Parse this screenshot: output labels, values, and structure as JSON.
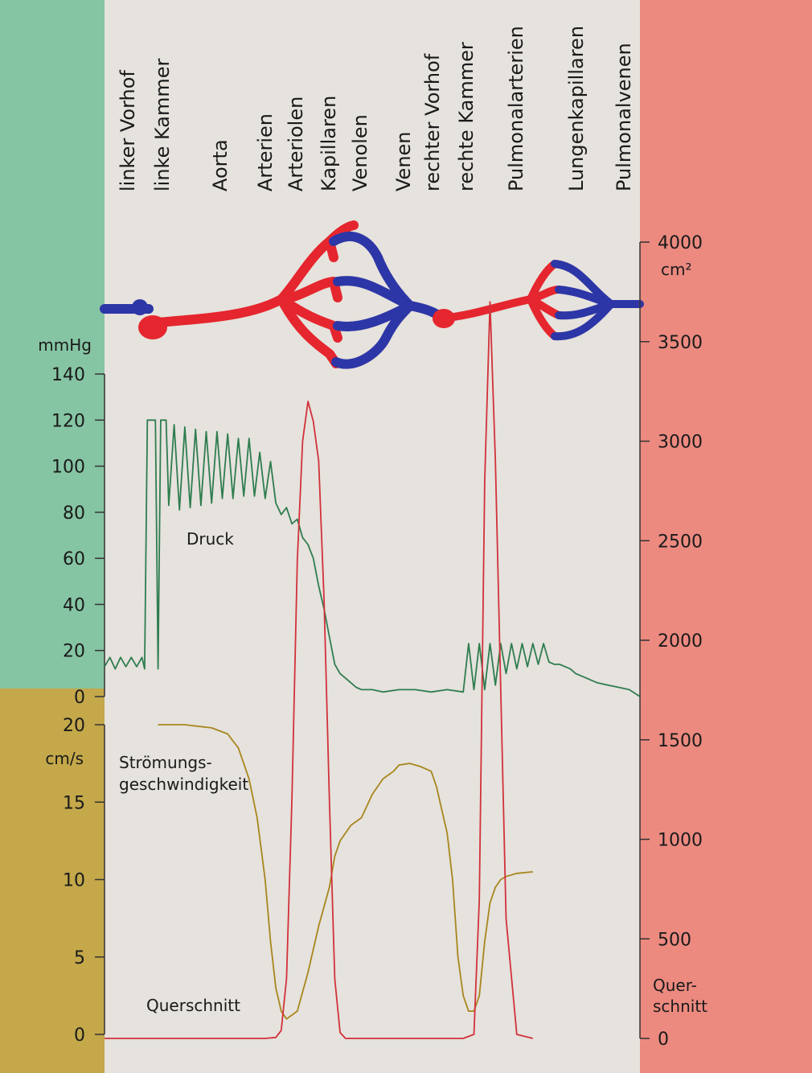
{
  "chart_data": {
    "type": "line",
    "vessel_labels": [
      "linker Vorhof",
      "linke Kammer",
      "Aorta",
      "Arterien",
      "Arteriolen",
      "Kapillaren",
      "Venolen",
      "Venen",
      "rechter Vorhof",
      "rechte Kammer",
      "Pulmonalarterien",
      "Lungenkapillaren",
      "Pulmonalvenen"
    ],
    "pressure_axis": {
      "unit": "mmHg",
      "ticks": [
        0,
        20,
        40,
        60,
        80,
        100,
        120,
        140
      ],
      "range": [
        0,
        140
      ]
    },
    "velocity_axis": {
      "unit": "cm/s",
      "ticks": [
        0,
        5,
        10,
        15,
        20
      ],
      "range": [
        0,
        20
      ]
    },
    "cross_section_axis": {
      "unit": "cm²",
      "label": "Quer-\nschnitt",
      "ticks": [
        0,
        500,
        1000,
        1500,
        2000,
        2500,
        3000,
        3500,
        4000
      ],
      "range": [
        0,
        4000
      ]
    },
    "x_range": [
      0,
      100
    ],
    "series": [
      {
        "name": "Druck",
        "axis": "pressure",
        "color": "#2e7d4f",
        "x": [
          0,
          1,
          2,
          3,
          4,
          5,
          6,
          7,
          7.5,
          8,
          9.5,
          10,
          10.5,
          11,
          11.5,
          12,
          13,
          14,
          15,
          16,
          17,
          18,
          19,
          20,
          21,
          22,
          23,
          24,
          25,
          26,
          27,
          28,
          29,
          30,
          31,
          32,
          33,
          34,
          35,
          36,
          37,
          38,
          39,
          40,
          41,
          42,
          43,
          44,
          45,
          46,
          47,
          48,
          50,
          52,
          55,
          58,
          61,
          64,
          67,
          68,
          69,
          70,
          71,
          72,
          73,
          74,
          75,
          76,
          77,
          78,
          79,
          80,
          81,
          82,
          83,
          84,
          85,
          86,
          87,
          88,
          90,
          92,
          94,
          96,
          98,
          100
        ],
        "y": [
          13,
          17,
          12,
          17,
          13,
          17,
          13,
          17,
          12,
          120,
          120,
          12,
          120,
          120,
          120,
          83,
          118,
          81,
          117,
          82,
          116,
          83,
          115,
          84,
          115,
          86,
          114,
          86,
          112,
          87,
          112,
          87,
          106,
          86,
          102,
          84,
          79,
          82,
          75,
          77,
          69,
          66,
          60,
          48,
          38,
          26,
          14,
          10,
          8,
          6,
          4,
          3,
          3,
          2,
          3,
          3,
          2,
          3,
          2,
          23,
          3,
          23,
          3,
          23,
          5,
          23,
          10,
          23,
          12,
          23,
          13,
          23,
          14,
          23,
          15,
          14,
          14,
          13,
          12,
          10,
          8,
          6,
          5,
          4,
          3,
          0
        ]
      },
      {
        "name": "Strömungsgeschwindigkeit",
        "axis": "velocity",
        "color": "#a8861e",
        "x": [
          10,
          15,
          20,
          23,
          25,
          27,
          28.5,
          30,
          31,
          32,
          33,
          34,
          36,
          38,
          40,
          42,
          43,
          44,
          46,
          48,
          50,
          52,
          54,
          55,
          57,
          59,
          61,
          62,
          64,
          65,
          66,
          67,
          68,
          69,
          70,
          71,
          72,
          73,
          74,
          75,
          76,
          77,
          80
        ],
        "y": [
          20,
          20,
          19.8,
          19.4,
          18.5,
          16.5,
          14,
          10,
          6,
          3,
          1.5,
          1,
          1.5,
          4,
          7,
          9.5,
          11.5,
          12.5,
          13.5,
          14,
          15.5,
          16.5,
          17,
          17.4,
          17.5,
          17.3,
          17,
          16,
          13,
          10,
          5,
          2.5,
          1.5,
          1.5,
          2.5,
          6,
          8.5,
          9.5,
          10,
          10.2,
          10.3,
          10.4,
          10.5
        ]
      },
      {
        "name": "Querschnitt",
        "axis": "cross_section",
        "color": "#d1313a",
        "x": [
          0,
          5,
          10,
          20,
          30,
          32,
          33,
          34,
          35,
          36,
          37,
          38,
          39,
          40,
          41,
          42,
          43,
          44,
          45,
          50,
          60,
          67,
          69,
          70,
          71,
          72,
          73,
          75,
          77,
          80
        ],
        "y": [
          0,
          0,
          0,
          0,
          0,
          5,
          40,
          300,
          1200,
          2400,
          3000,
          3200,
          3100,
          2900,
          2200,
          1200,
          300,
          30,
          0,
          0,
          0,
          0,
          20,
          700,
          2800,
          3700,
          2900,
          600,
          20,
          0
        ]
      }
    ]
  }
}
